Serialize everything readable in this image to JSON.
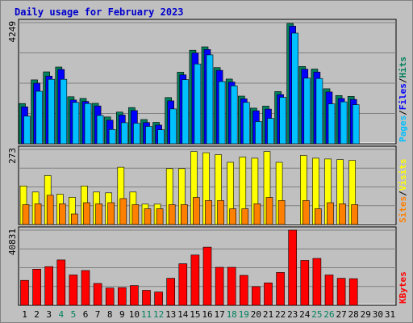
{
  "colors": {
    "background": "#c0c0c0",
    "title": "#0000cc",
    "hits": "#00805c",
    "files": "#0000ff",
    "pages": "#00c0ff",
    "visits": "#ffff00",
    "sites": "#ff8000",
    "kbytes": "#ff0000",
    "weekend_label": "#00805c",
    "weekday_label": "#000000"
  },
  "chart_data": {
    "type": "bar",
    "title": "Daily usage for February 2023",
    "days": [
      "1",
      "2",
      "3",
      "4",
      "5",
      "6",
      "7",
      "8",
      "9",
      "10",
      "11",
      "12",
      "13",
      "14",
      "15",
      "16",
      "17",
      "18",
      "19",
      "20",
      "21",
      "22",
      "23",
      "24",
      "25",
      "26",
      "27",
      "28",
      "29",
      "30",
      "31"
    ],
    "weekend_days": [
      "4",
      "5",
      "11",
      "12",
      "18",
      "19",
      "25",
      "26"
    ],
    "panels": [
      {
        "id": "hits-files-pages",
        "ymax_label": "4249",
        "ymax": 4249,
        "legend": [
          {
            "text": "Pages",
            "color": "#00c0ff"
          },
          {
            "text": "/",
            "color": "#000000"
          },
          {
            "text": "Files",
            "color": "#0000ff"
          },
          {
            "text": "/",
            "color": "#000000"
          },
          {
            "text": "Hits",
            "color": "#00805c"
          }
        ],
        "series": [
          {
            "name": "Hits",
            "color": "#00805c",
            "values": [
              1410,
              2240,
              2520,
              2690,
              1650,
              1590,
              1420,
              940,
              1110,
              1270,
              850,
              750,
              1620,
              2510,
              3280,
              3400,
              2670,
              2270,
              1670,
              1250,
              1320,
              1830,
              4220,
              2710,
              2620,
              1930,
              1690,
              1660,
              null,
              null,
              null
            ]
          },
          {
            "name": "Files",
            "color": "#0000ff",
            "values": [
              1380,
              2210,
              2460,
              2690,
              1620,
              1570,
              1410,
              910,
              1090,
              1250,
              830,
              740,
              1590,
              2500,
              3270,
              3390,
              2660,
              2250,
              1660,
              1240,
              1300,
              1810,
              4210,
              2700,
              2600,
              1900,
              1670,
              1640,
              null,
              null,
              null
            ]
          },
          {
            "name": "Pages",
            "color": "#00c0ff",
            "values": [
              1140,
              2010,
              2430,
              2430,
              1620,
              1580,
              1160,
              670,
              910,
              890,
              780,
              660,
              1390,
              2420,
              2970,
              3290,
              2350,
              2200,
              1620,
              950,
              1060,
              1800,
              4050,
              2470,
              2460,
              1570,
              1640,
              1540,
              null,
              null,
              null
            ]
          }
        ]
      },
      {
        "id": "visits-sites",
        "ymax_label": "273",
        "ymax": 273,
        "legend": [
          {
            "text": "Sites",
            "color": "#ff8000"
          },
          {
            "text": "/",
            "color": "#000000"
          },
          {
            "text": "Visits",
            "color": "#ffff00"
          }
        ],
        "series": [
          {
            "name": "Visits",
            "color": "#ffff00",
            "values": [
              140,
              118,
              178,
              110,
              99,
              140,
              118,
              115,
              208,
              118,
              74,
              74,
              203,
              203,
              265,
              261,
              254,
              226,
              245,
              241,
              265,
              226,
              null,
              251,
              241,
              238,
              236,
              233,
              null,
              null,
              null
            ]
          },
          {
            "name": "Sites",
            "color": "#ff8000",
            "values": [
              81,
              84,
              115,
              84,
              47,
              88,
              84,
              88,
              103,
              81,
              66,
              66,
              81,
              81,
              107,
              96,
              96,
              66,
              66,
              84,
              107,
              96,
              null,
              96,
              66,
              88,
              84,
              81,
              null,
              null,
              null
            ]
          }
        ]
      },
      {
        "id": "kbytes",
        "ymax_label": "40831",
        "ymax": 40831,
        "legend": [
          {
            "text": "KBytes",
            "color": "#ff0000"
          }
        ],
        "series": [
          {
            "name": "KBytes",
            "color": "#ff0000",
            "values": [
              13530,
              19620,
              20970,
              24630,
              16460,
              18900,
              11850,
              9360,
              9590,
              10720,
              8120,
              7220,
              14660,
              22550,
              27300,
              31560,
              20630,
              20630,
              16240,
              10150,
              12180,
              17820,
              40830,
              24350,
              25460,
              16460,
              14660,
              14440,
              null,
              null,
              null
            ]
          }
        ]
      }
    ]
  }
}
